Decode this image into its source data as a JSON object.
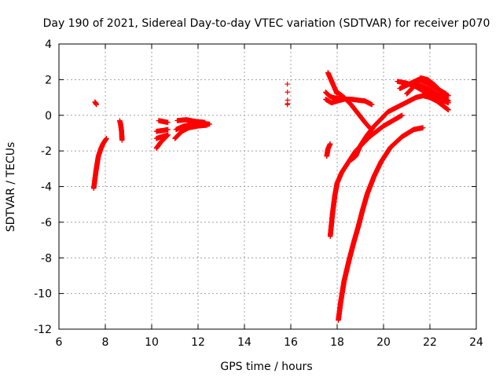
{
  "chart_data": {
    "type": "scatter",
    "title": "Day 190 of 2021, Sidereal Day-to-day VTEC variation (SDTVAR) for receiver p070",
    "xlabel": "GPS time / hours",
    "ylabel": "SDTVAR / TECUs",
    "xlim": [
      6,
      24
    ],
    "ylim": [
      -12,
      4
    ],
    "xticks": [
      6,
      8,
      10,
      12,
      14,
      16,
      18,
      20,
      22,
      24
    ],
    "yticks": [
      -12,
      -10,
      -8,
      -6,
      -4,
      -2,
      0,
      2,
      4
    ],
    "grid": true,
    "marker": "+",
    "series_color": "#ff0000",
    "series": [
      {
        "name": "SDTVAR",
        "segments": [
          {
            "x": [
              7.5,
              7.55,
              7.6,
              7.65,
              7.7,
              7.8,
              7.9,
              8.0,
              8.05
            ],
            "y": [
              -4.1,
              -3.6,
              -3.1,
              -2.7,
              -2.3,
              -1.9,
              -1.6,
              -1.4,
              -1.3
            ],
            "step": 0.02
          },
          {
            "x": [
              7.55,
              7.62
            ],
            "y": [
              0.75,
              0.6
            ],
            "step": 0.02
          },
          {
            "x": [
              8.62,
              8.66,
              8.7,
              8.72
            ],
            "y": [
              -0.3,
              -0.5,
              -0.9,
              -1.4
            ],
            "step": 0.02
          },
          {
            "x": [
              10.2,
              10.4,
              10.7
            ],
            "y": [
              -1.85,
              -1.5,
              -1.1
            ],
            "step": 0.02
          },
          {
            "x": [
              10.2,
              10.5,
              10.7
            ],
            "y": [
              -0.9,
              -0.85,
              -0.8
            ],
            "step": 0.02
          },
          {
            "x": [
              10.3,
              10.5,
              10.7
            ],
            "y": [
              -0.3,
              -0.35,
              -0.4
            ],
            "step": 0.02
          },
          {
            "x": [
              10.2,
              10.45,
              10.7
            ],
            "y": [
              -1.3,
              -1.2,
              -1.1
            ],
            "step": 0.02
          },
          {
            "x": [
              11.05,
              11.4,
              11.8,
              12.2,
              12.5
            ],
            "y": [
              -0.8,
              -0.6,
              -0.5,
              -0.45,
              -0.5
            ],
            "step": 0.02
          },
          {
            "x": [
              11.1,
              11.5,
              11.9,
              12.3
            ],
            "y": [
              -0.3,
              -0.25,
              -0.35,
              -0.4
            ],
            "step": 0.02
          },
          {
            "x": [
              11.0,
              11.3,
              11.6,
              12.0,
              12.4
            ],
            "y": [
              -1.3,
              -0.9,
              -0.7,
              -0.6,
              -0.55
            ],
            "step": 0.02
          },
          {
            "x": [
              15.85,
              15.86
            ],
            "y": [
              1.75,
              0.85
            ],
            "step": 0.45
          },
          {
            "x": [
              15.85,
              15.86
            ],
            "y": [
              0.6,
              0.65
            ],
            "step": 0.05
          },
          {
            "x": [
              17.55,
              17.6,
              17.65,
              17.7
            ],
            "y": [
              -2.3,
              -1.9,
              -1.75,
              -1.6
            ],
            "step": 0.02
          },
          {
            "x": [
              17.5,
              17.65,
              17.8,
              18.0,
              18.2
            ],
            "y": [
              1.3,
              1.1,
              1.0,
              0.95,
              0.9
            ],
            "step": 0.02
          },
          {
            "x": [
              17.6,
              17.7,
              17.8,
              17.9,
              18.0
            ],
            "y": [
              2.4,
              2.1,
              1.8,
              1.5,
              1.2
            ],
            "step": 0.02
          },
          {
            "x": [
              18.0,
              18.3,
              18.6,
              18.9,
              19.2,
              19.4,
              19.5
            ],
            "y": [
              1.3,
              1.0,
              0.6,
              0.1,
              -0.4,
              -0.7,
              -0.8
            ],
            "step": 0.02
          },
          {
            "x": [
              17.5,
              17.75,
              18.0,
              18.3,
              18.6,
              18.9,
              19.2,
              19.5
            ],
            "y": [
              0.9,
              0.7,
              0.8,
              0.9,
              0.9,
              0.85,
              0.8,
              0.6
            ],
            "step": 0.02
          },
          {
            "x": [
              17.7,
              17.8,
              17.9,
              18.0,
              18.2,
              18.5,
              18.8,
              19.1,
              19.4,
              19.7,
              20.0,
              20.4,
              20.8
            ],
            "y": [
              -6.8,
              -5.5,
              -4.5,
              -3.8,
              -3.2,
              -2.6,
              -2.0,
              -1.6,
              -1.2,
              -0.9,
              -0.6,
              -0.3,
              0.0
            ],
            "step": 0.02
          },
          {
            "x": [
              18.6,
              18.8,
              19.0,
              19.3,
              19.6,
              19.9,
              20.2,
              20.5
            ],
            "y": [
              -2.5,
              -2.3,
              -1.7,
              -1.1,
              -0.6,
              -0.2,
              0.2,
              0.4
            ],
            "step": 0.02
          },
          {
            "x": [
              18.05,
              18.15,
              18.3,
              18.5,
              18.7,
              18.9,
              19.1,
              19.3,
              19.6,
              19.9,
              20.3,
              20.8,
              21.3,
              21.7
            ],
            "y": [
              -11.5,
              -10.5,
              -9.3,
              -8.2,
              -7.2,
              -6.3,
              -5.3,
              -4.4,
              -3.4,
              -2.6,
              -1.8,
              -1.2,
              -0.8,
              -0.7
            ],
            "step": 0.015
          },
          {
            "x": [
              20.5,
              20.8,
              21.1,
              21.4,
              21.7,
              22.0,
              22.3,
              22.6,
              22.8
            ],
            "y": [
              0.4,
              0.6,
              0.8,
              1.0,
              1.1,
              1.0,
              0.8,
              0.5,
              0.3
            ],
            "step": 0.02
          },
          {
            "x": [
              20.6,
              21.0,
              21.4,
              21.8,
              22.2,
              22.6,
              22.8
            ],
            "y": [
              1.9,
              1.8,
              1.6,
              1.3,
              1.0,
              0.8,
              0.7
            ],
            "step": 0.02
          },
          {
            "x": [
              20.7,
              21.1,
              21.5,
              21.9,
              22.3,
              22.7
            ],
            "y": [
              1.5,
              1.75,
              2.0,
              1.8,
              1.5,
              1.2
            ],
            "step": 0.02
          },
          {
            "x": [
              21.0,
              21.3,
              21.6,
              21.9,
              22.2,
              22.5,
              22.8
            ],
            "y": [
              1.2,
              1.6,
              2.1,
              2.0,
              1.7,
              1.3,
              1.1
            ],
            "step": 0.02
          },
          {
            "x": [
              21.5,
              21.9,
              22.3,
              22.7,
              22.8
            ],
            "y": [
              1.7,
              1.5,
              1.2,
              0.9,
              0.8
            ],
            "step": 0.02
          }
        ]
      }
    ]
  }
}
